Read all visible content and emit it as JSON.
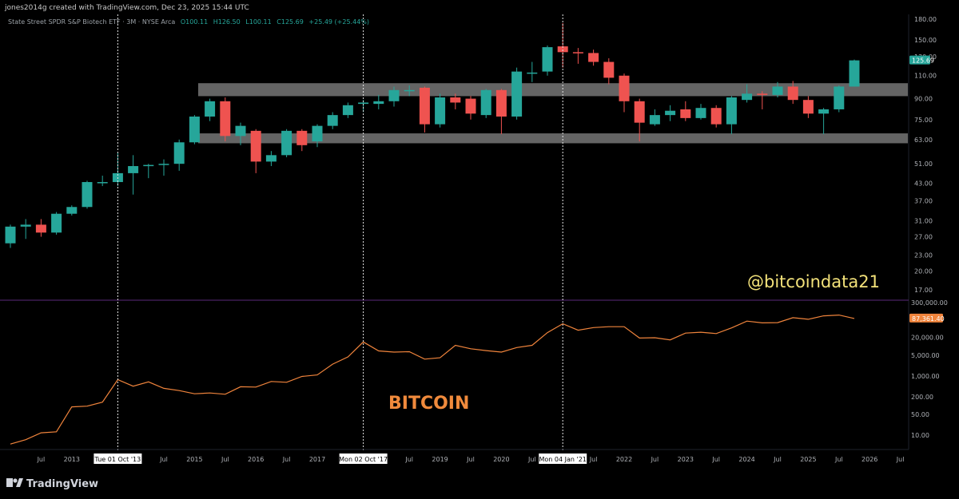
{
  "header": {
    "credit": "jones2014g created with TradingView.com, Dec 23, 2025 15:44 UTC",
    "symbol": "State Street SPDR S&P Biotech ETF · 3M · NYSE Arca",
    "ohlc": {
      "o": "O100.11",
      "h": "H126.50",
      "l": "L100.11",
      "c": "C125.69",
      "chg": "+25.49 (+25.44%)"
    }
  },
  "watermarks": {
    "handle": "@bitcoindata21",
    "btc": "BITCOIN"
  },
  "brand": "TradingView",
  "colors": {
    "up": "#26a69a",
    "down": "#ef5350",
    "btc_line": "#f0843c",
    "zone": "#808080",
    "price_badge": "#26a69a",
    "btc_badge": "#f0843c",
    "divider": "#5a2a7a"
  },
  "chart_data": [
    {
      "type": "candlestick",
      "title": "State Street SPDR S&P Biotech ETF · 3M · NYSE Arca",
      "scale": "log",
      "ylim": [
        14,
        180
      ],
      "y_ticks": [
        "180.00",
        "150.00",
        "130.00",
        "110.00",
        "90.00",
        "75.00",
        "63.00",
        "51.00",
        "43.00",
        "37.00",
        "31.00",
        "27.00",
        "23.00",
        "20.00",
        "17.00"
      ],
      "last_price": "125.69",
      "zones": [
        {
          "low": 92,
          "high": 103
        },
        {
          "low": 61,
          "high": 66.5
        }
      ],
      "candles": [
        {
          "t": "2012Q1",
          "o": 25.5,
          "h": 30,
          "l": 24.5,
          "c": 29.5
        },
        {
          "t": "2012Q2",
          "o": 29.5,
          "h": 31.5,
          "l": 26.5,
          "c": 30
        },
        {
          "t": "2012Q3",
          "o": 30,
          "h": 31.5,
          "l": 27,
          "c": 28
        },
        {
          "t": "2012Q4",
          "o": 28,
          "h": 33.5,
          "l": 27.5,
          "c": 33
        },
        {
          "t": "2013Q1",
          "o": 33,
          "h": 35.5,
          "l": 32.5,
          "c": 35
        },
        {
          "t": "2013Q2",
          "o": 35,
          "h": 44,
          "l": 34.5,
          "c": 43.5
        },
        {
          "t": "2013Q3",
          "o": 43.5,
          "h": 46,
          "l": 42,
          "c": 43.5
        },
        {
          "t": "2013Q4",
          "o": 43.5,
          "h": 56,
          "l": 42,
          "c": 47
        },
        {
          "t": "2014Q1",
          "o": 47,
          "h": 55,
          "l": 39,
          "c": 50
        },
        {
          "t": "2014Q2",
          "o": 50,
          "h": 51,
          "l": 45,
          "c": 50.5
        },
        {
          "t": "2014Q3",
          "o": 50.5,
          "h": 53,
          "l": 46,
          "c": 51
        },
        {
          "t": "2014Q4",
          "o": 51,
          "h": 63,
          "l": 48,
          "c": 61.5
        },
        {
          "t": "2015Q1",
          "o": 61.5,
          "h": 78,
          "l": 60.5,
          "c": 77
        },
        {
          "t": "2015Q2",
          "o": 77,
          "h": 90,
          "l": 74,
          "c": 88
        },
        {
          "t": "2015Q3",
          "o": 88,
          "h": 91,
          "l": 62,
          "c": 65
        },
        {
          "t": "2015Q4",
          "o": 65,
          "h": 73,
          "l": 60,
          "c": 71
        },
        {
          "t": "2016Q1",
          "o": 68,
          "h": 69,
          "l": 47,
          "c": 52
        },
        {
          "t": "2016Q2",
          "o": 52,
          "h": 57,
          "l": 50,
          "c": 55
        },
        {
          "t": "2016Q3",
          "o": 55,
          "h": 69,
          "l": 54,
          "c": 68
        },
        {
          "t": "2016Q4",
          "o": 68,
          "h": 69,
          "l": 57,
          "c": 60
        },
        {
          "t": "2017Q1",
          "o": 62,
          "h": 72,
          "l": 59,
          "c": 71
        },
        {
          "t": "2017Q2",
          "o": 71,
          "h": 80,
          "l": 69,
          "c": 78
        },
        {
          "t": "2017Q3",
          "o": 78,
          "h": 87,
          "l": 76,
          "c": 85
        },
        {
          "t": "2017Q4",
          "o": 86,
          "h": 89,
          "l": 80,
          "c": 87
        },
        {
          "t": "2018Q1",
          "o": 86,
          "h": 93,
          "l": 82,
          "c": 88
        },
        {
          "t": "2018Q2",
          "o": 88,
          "h": 100,
          "l": 84,
          "c": 97
        },
        {
          "t": "2018Q3",
          "o": 96,
          "h": 101,
          "l": 92,
          "c": 97
        },
        {
          "t": "2018Q4",
          "o": 99,
          "h": 100,
          "l": 67,
          "c": 72
        },
        {
          "t": "2019Q1",
          "o": 72,
          "h": 94,
          "l": 70,
          "c": 91
        },
        {
          "t": "2019Q2",
          "o": 91,
          "h": 94,
          "l": 82,
          "c": 87
        },
        {
          "t": "2019Q3",
          "o": 90,
          "h": 92,
          "l": 75,
          "c": 79
        },
        {
          "t": "2019Q4",
          "o": 78,
          "h": 98,
          "l": 76,
          "c": 97
        },
        {
          "t": "2020Q1",
          "o": 97,
          "h": 98,
          "l": 66,
          "c": 77
        },
        {
          "t": "2020Q2",
          "o": 77,
          "h": 118,
          "l": 75,
          "c": 114
        },
        {
          "t": "2020Q3",
          "o": 112,
          "h": 124,
          "l": 104,
          "c": 113
        },
        {
          "t": "2020Q4",
          "o": 114,
          "h": 143,
          "l": 110,
          "c": 141
        },
        {
          "t": "2021Q1",
          "o": 142,
          "h": 174,
          "l": 118,
          "c": 135
        },
        {
          "t": "2021Q2",
          "o": 135,
          "h": 140,
          "l": 122,
          "c": 134
        },
        {
          "t": "2021Q3",
          "o": 134,
          "h": 138,
          "l": 120,
          "c": 124
        },
        {
          "t": "2021Q4",
          "o": 124,
          "h": 128,
          "l": 102,
          "c": 108
        },
        {
          "t": "2022Q1",
          "o": 110,
          "h": 112,
          "l": 80,
          "c": 88
        },
        {
          "t": "2022Q2",
          "o": 88,
          "h": 90,
          "l": 62,
          "c": 73
        },
        {
          "t": "2022Q3",
          "o": 72,
          "h": 82,
          "l": 71,
          "c": 78
        },
        {
          "t": "2022Q4",
          "o": 78,
          "h": 85,
          "l": 74,
          "c": 81
        },
        {
          "t": "2023Q1",
          "o": 82,
          "h": 88,
          "l": 74,
          "c": 76
        },
        {
          "t": "2023Q2",
          "o": 76,
          "h": 86,
          "l": 75,
          "c": 83
        },
        {
          "t": "2023Q3",
          "o": 83,
          "h": 85,
          "l": 70,
          "c": 72
        },
        {
          "t": "2023Q4",
          "o": 72,
          "h": 92,
          "l": 66,
          "c": 91
        },
        {
          "t": "2024Q1",
          "o": 89,
          "h": 102,
          "l": 87,
          "c": 94
        },
        {
          "t": "2024Q2",
          "o": 94,
          "h": 96,
          "l": 82,
          "c": 93
        },
        {
          "t": "2024Q3",
          "o": 93,
          "h": 104,
          "l": 91,
          "c": 100
        },
        {
          "t": "2024Q4",
          "o": 100,
          "h": 105,
          "l": 86,
          "c": 89
        },
        {
          "t": "2025Q1",
          "o": 89,
          "h": 92,
          "l": 76,
          "c": 79
        },
        {
          "t": "2025Q2",
          "o": 79,
          "h": 83,
          "l": 66,
          "c": 82
        },
        {
          "t": "2025Q3",
          "o": 82,
          "h": 101,
          "l": 80,
          "c": 100
        },
        {
          "t": "2025Q4",
          "o": 100,
          "h": 126.5,
          "l": 100.11,
          "c": 125.69
        }
      ]
    },
    {
      "type": "line",
      "series": [
        {
          "name": "BITCOIN"
        }
      ],
      "scale": "log",
      "ylim": [
        6,
        350000
      ],
      "y_ticks": [
        "300,000.00",
        "20,000.00",
        "5,000.00",
        "1,000.00",
        "200.00",
        "50.00",
        "10.00"
      ],
      "last_value": "87,361.40",
      "x": [
        "2012Q1",
        "2012Q2",
        "2012Q3",
        "2012Q4",
        "2013Q1",
        "2013Q2",
        "2013Q3",
        "2013Q4",
        "2014Q1",
        "2014Q2",
        "2014Q3",
        "2014Q4",
        "2015Q1",
        "2015Q2",
        "2015Q3",
        "2015Q4",
        "2016Q1",
        "2016Q2",
        "2016Q3",
        "2016Q4",
        "2017Q1",
        "2017Q2",
        "2017Q3",
        "2017Q4",
        "2018Q1",
        "2018Q2",
        "2018Q3",
        "2018Q4",
        "2019Q1",
        "2019Q2",
        "2019Q3",
        "2019Q4",
        "2020Q1",
        "2020Q2",
        "2020Q3",
        "2020Q4",
        "2021Q1",
        "2021Q2",
        "2021Q3",
        "2021Q4",
        "2022Q1",
        "2022Q2",
        "2022Q3",
        "2022Q4",
        "2023Q1",
        "2023Q2",
        "2023Q3",
        "2023Q4",
        "2024Q1",
        "2024Q2",
        "2024Q3",
        "2024Q4",
        "2025Q1",
        "2025Q2",
        "2025Q3",
        "2025Q4"
      ],
      "values": [
        5,
        7,
        12,
        13,
        90,
        95,
        130,
        750,
        450,
        630,
        380,
        320,
        250,
        265,
        240,
        430,
        420,
        650,
        610,
        960,
        1080,
        2500,
        4400,
        14000,
        7000,
        6400,
        6600,
        3700,
        4100,
        10800,
        8300,
        7200,
        6400,
        9100,
        10800,
        29000,
        58000,
        35000,
        43000,
        46000,
        46000,
        19000,
        19500,
        16500,
        28000,
        30000,
        27000,
        42000,
        71000,
        62000,
        63000,
        93000,
        82000,
        107000,
        114000,
        87361
      ]
    }
  ],
  "x_axis": {
    "ticks": [
      {
        "t": "2012Q3",
        "label": "Jul"
      },
      {
        "t": "2013Q1",
        "label": "2013"
      },
      {
        "t": "2014Q3",
        "label": "Jul"
      },
      {
        "t": "2015Q1",
        "label": "2015"
      },
      {
        "t": "2015Q3",
        "label": "Jul"
      },
      {
        "t": "2016Q1",
        "label": "2016"
      },
      {
        "t": "2016Q3",
        "label": "Jul"
      },
      {
        "t": "2017Q1",
        "label": "2017"
      },
      {
        "t": "2018Q3",
        "label": "Jul"
      },
      {
        "t": "2019Q1",
        "label": "2019"
      },
      {
        "t": "2019Q3",
        "label": "Jul"
      },
      {
        "t": "2020Q1",
        "label": "2020"
      },
      {
        "t": "2020Q3",
        "label": "Jul"
      },
      {
        "t": "2021Q3",
        "label": "Jul"
      },
      {
        "t": "2022Q1",
        "label": "2022"
      },
      {
        "t": "2022Q3",
        "label": "Jul"
      },
      {
        "t": "2023Q1",
        "label": "2023"
      },
      {
        "t": "2023Q3",
        "label": "Jul"
      },
      {
        "t": "2024Q1",
        "label": "2024"
      },
      {
        "t": "2024Q3",
        "label": "Jul"
      },
      {
        "t": "2025Q1",
        "label": "2025"
      },
      {
        "t": "2025Q3",
        "label": "Jul"
      },
      {
        "t": "2026Q1",
        "label": "2026"
      },
      {
        "t": "2026Q3",
        "label": "Jul"
      }
    ],
    "markers": [
      {
        "t": "2013Q4",
        "label": "Tue 01 Oct '13"
      },
      {
        "t": "2017Q4",
        "label": "Mon 02 Oct '17"
      },
      {
        "t": "2021Q1",
        "label": "Mon 04 Jan '21"
      }
    ]
  }
}
